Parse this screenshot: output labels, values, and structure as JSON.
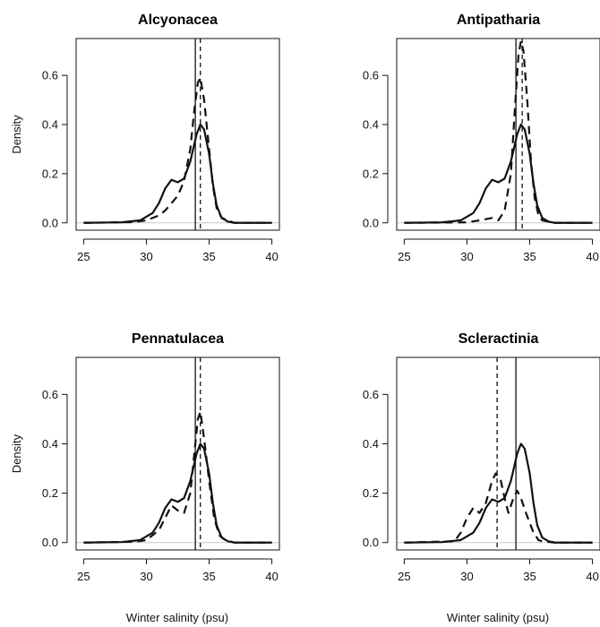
{
  "figure": {
    "ylabel": "Density",
    "xlabel": "Winter salinity (psu)"
  },
  "chart_data": [
    {
      "type": "line",
      "title": "Alcyonacea",
      "xlabel": "",
      "ylabel": "Density",
      "xlim": [
        25,
        40
      ],
      "ylim": [
        0,
        0.75
      ],
      "xticks": [
        25,
        30,
        35,
        40
      ],
      "yticks": [
        0.0,
        0.2,
        0.4,
        0.6
      ],
      "ytick_labels": [
        "0.0",
        "0.2",
        "0.4",
        "0.6"
      ],
      "grid": false,
      "series": [
        {
          "style": "solid",
          "x": [
            25,
            28,
            29.5,
            30.5,
            31,
            31.5,
            32,
            32.5,
            33,
            33.5,
            34,
            34.3,
            34.6,
            35,
            35.3,
            35.6,
            36,
            36.5,
            37,
            40
          ],
          "y": [
            0,
            0.002,
            0.01,
            0.04,
            0.08,
            0.14,
            0.175,
            0.165,
            0.18,
            0.25,
            0.36,
            0.4,
            0.38,
            0.28,
            0.16,
            0.07,
            0.02,
            0.005,
            0,
            0
          ]
        },
        {
          "style": "dashed",
          "x": [
            25,
            29,
            30,
            31,
            31.5,
            32,
            32.5,
            33,
            33.5,
            33.8,
            34.1,
            34.3,
            34.6,
            35,
            35.3,
            35.6,
            36,
            37,
            40
          ],
          "y": [
            0,
            0.003,
            0.01,
            0.03,
            0.05,
            0.08,
            0.11,
            0.17,
            0.3,
            0.45,
            0.57,
            0.59,
            0.5,
            0.3,
            0.15,
            0.06,
            0.02,
            0,
            0
          ]
        }
      ],
      "vlines": [
        {
          "x": 33.9,
          "style": "solid"
        },
        {
          "x": 34.3,
          "style": "dashed"
        }
      ]
    },
    {
      "type": "line",
      "title": "Antipatharia",
      "xlabel": "",
      "ylabel": "",
      "xlim": [
        25,
        40
      ],
      "ylim": [
        0,
        0.75
      ],
      "xticks": [
        25,
        30,
        35,
        40
      ],
      "yticks": [
        0.0,
        0.2,
        0.4,
        0.6
      ],
      "ytick_labels": [
        "0.0",
        "0.2",
        "0.4",
        "0.6"
      ],
      "grid": false,
      "series": [
        {
          "style": "solid",
          "x": [
            25,
            28,
            29.5,
            30.5,
            31,
            31.5,
            32,
            32.5,
            33,
            33.5,
            34,
            34.3,
            34.6,
            35,
            35.3,
            35.6,
            36,
            36.5,
            37,
            40
          ],
          "y": [
            0,
            0.002,
            0.01,
            0.04,
            0.08,
            0.14,
            0.175,
            0.165,
            0.18,
            0.25,
            0.36,
            0.4,
            0.38,
            0.28,
            0.16,
            0.07,
            0.02,
            0.005,
            0,
            0
          ]
        },
        {
          "style": "dashed",
          "x": [
            25,
            30,
            31,
            32,
            32.5,
            33,
            33.5,
            33.8,
            34.1,
            34.3,
            34.5,
            34.8,
            35.1,
            35.4,
            35.7,
            36,
            37,
            40
          ],
          "y": [
            0,
            0.002,
            0.01,
            0.02,
            0.01,
            0.05,
            0.2,
            0.45,
            0.68,
            0.74,
            0.7,
            0.5,
            0.25,
            0.1,
            0.03,
            0.01,
            0,
            0
          ]
        }
      ],
      "vlines": [
        {
          "x": 33.9,
          "style": "solid"
        },
        {
          "x": 34.4,
          "style": "dashed"
        }
      ]
    },
    {
      "type": "line",
      "title": "Pennatulacea",
      "xlabel": "Winter salinity (psu)",
      "ylabel": "Density",
      "xlim": [
        25,
        40
      ],
      "ylim": [
        0,
        0.75
      ],
      "xticks": [
        25,
        30,
        35,
        40
      ],
      "yticks": [
        0.0,
        0.2,
        0.4,
        0.6
      ],
      "ytick_labels": [
        "0.0",
        "0.2",
        "0.4",
        "0.6"
      ],
      "grid": false,
      "series": [
        {
          "style": "solid",
          "x": [
            25,
            28,
            29.5,
            30.5,
            31,
            31.5,
            32,
            32.5,
            33,
            33.5,
            34,
            34.3,
            34.6,
            35,
            35.3,
            35.6,
            36,
            36.5,
            37,
            40
          ],
          "y": [
            0,
            0.002,
            0.01,
            0.04,
            0.08,
            0.14,
            0.175,
            0.165,
            0.18,
            0.25,
            0.36,
            0.4,
            0.38,
            0.28,
            0.16,
            0.07,
            0.02,
            0.005,
            0,
            0
          ]
        },
        {
          "style": "dashed",
          "x": [
            25,
            29,
            30,
            31,
            31.5,
            32,
            32.5,
            33,
            33.5,
            33.8,
            34.1,
            34.3,
            34.6,
            35,
            35.4,
            35.8,
            36.3,
            37,
            40
          ],
          "y": [
            0,
            0.003,
            0.01,
            0.05,
            0.1,
            0.15,
            0.13,
            0.12,
            0.2,
            0.35,
            0.5,
            0.53,
            0.42,
            0.25,
            0.1,
            0.03,
            0.01,
            0,
            0
          ]
        }
      ],
      "vlines": [
        {
          "x": 33.9,
          "style": "solid"
        },
        {
          "x": 34.3,
          "style": "dashed"
        }
      ]
    },
    {
      "type": "line",
      "title": "Scleractinia",
      "xlabel": "Winter salinity (psu)",
      "ylabel": "",
      "xlim": [
        25,
        40
      ],
      "ylim": [
        0,
        0.75
      ],
      "xticks": [
        25,
        30,
        35,
        40
      ],
      "yticks": [
        0.0,
        0.2,
        0.4,
        0.6
      ],
      "ytick_labels": [
        "0.0",
        "0.2",
        "0.4",
        "0.6"
      ],
      "grid": false,
      "series": [
        {
          "style": "solid",
          "x": [
            25,
            28,
            29.5,
            30.5,
            31,
            31.5,
            32,
            32.5,
            33,
            33.5,
            34,
            34.3,
            34.6,
            35,
            35.3,
            35.6,
            36,
            36.5,
            37,
            40
          ],
          "y": [
            0,
            0.002,
            0.01,
            0.04,
            0.08,
            0.14,
            0.175,
            0.165,
            0.18,
            0.25,
            0.36,
            0.4,
            0.38,
            0.28,
            0.16,
            0.07,
            0.02,
            0.005,
            0,
            0
          ]
        },
        {
          "style": "dashed",
          "x": [
            25,
            29,
            29.5,
            30,
            30.5,
            31,
            31.5,
            32,
            32.3,
            32.7,
            33,
            33.3,
            33.7,
            34,
            34.3,
            34.7,
            35,
            35.3,
            35.7,
            36,
            37,
            40
          ],
          "y": [
            0,
            0.005,
            0.04,
            0.1,
            0.14,
            0.12,
            0.16,
            0.25,
            0.28,
            0.25,
            0.18,
            0.12,
            0.18,
            0.21,
            0.18,
            0.12,
            0.08,
            0.04,
            0.01,
            0.005,
            0,
            0
          ]
        }
      ],
      "vlines": [
        {
          "x": 33.9,
          "style": "solid"
        },
        {
          "x": 32.4,
          "style": "dashed"
        }
      ]
    }
  ]
}
